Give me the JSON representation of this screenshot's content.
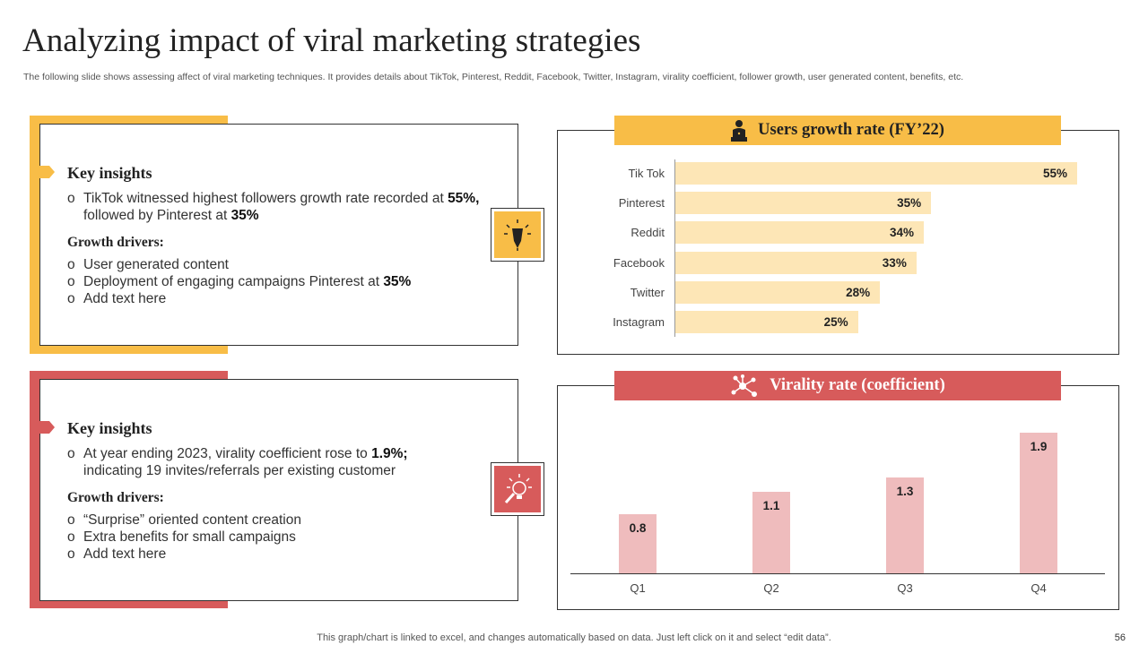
{
  "title": "Analyzing impact of viral marketing strategies",
  "subtitle": "The following slide shows assessing affect of viral marketing techniques. It provides details about TikTok, Pinterest, Reddit, Facebook, Twitter,  Instagram, virality coefficient, follower growth, user generated content, benefits, etc.",
  "colors": {
    "yellow": "#f8bd47",
    "red": "#d75b5b",
    "bar_yellow": "#fde6b6",
    "bar_pink": "#efbcbd"
  },
  "card1": {
    "heading": "Key insights",
    "insight_prefix": "TikTok witnessed highest followers growth rate recorded at ",
    "insight_bold1": "55%,",
    "insight_mid": " followed by Pinterest at ",
    "insight_bold2": "35%",
    "drivers_heading": "Growth drivers:",
    "driver1": "User generated content",
    "driver2_prefix": "Deployment of engaging campaigns Pinterest at ",
    "driver2_bold": "35%",
    "driver3": " Add text here",
    "bullet": "o",
    "icon": "pen-lightbulb-icon"
  },
  "card2": {
    "heading": "Key insights",
    "insight_prefix": "At year ending 2023, virality coefficient rose to ",
    "insight_bold": "1.9%;",
    "insight_line2": "indicating 19 invites/referrals per existing customer",
    "drivers_heading": "Growth drivers:",
    "driver1": "“Surprise” oriented content creation",
    "driver2": "Extra benefits for small campaigns",
    "driver3": "Add text here",
    "bullet": "o",
    "icon": "lightbulb-search-icon"
  },
  "chart_data": [
    {
      "type": "bar",
      "orientation": "horizontal",
      "title": "Users growth rate (FY’22)",
      "title_icon": "user-laptop-icon",
      "categories": [
        "Tik Tok",
        "Pinterest",
        "Reddit",
        "Facebook",
        "Twitter",
        "Instagram"
      ],
      "values": [
        55,
        35,
        34,
        33,
        28,
        25
      ],
      "value_labels": [
        "55%",
        "35%",
        "34%",
        "33%",
        "28%",
        "25%"
      ],
      "xlim": [
        0,
        55
      ]
    },
    {
      "type": "bar",
      "orientation": "vertical",
      "title": "Virality rate (coefficient)",
      "title_icon": "network-nodes-icon",
      "categories": [
        "Q1",
        "Q2",
        "Q3",
        "Q4"
      ],
      "values": [
        0.8,
        1.1,
        1.3,
        1.9
      ],
      "value_labels": [
        "0.8",
        "1.1",
        "1.3",
        "1.9"
      ],
      "ylim": [
        0,
        1.9
      ]
    }
  ],
  "footer": "This graph/chart is linked to excel,  and changes automatically based on data. Just left click on it and select “edit data”.",
  "page_number": "56"
}
